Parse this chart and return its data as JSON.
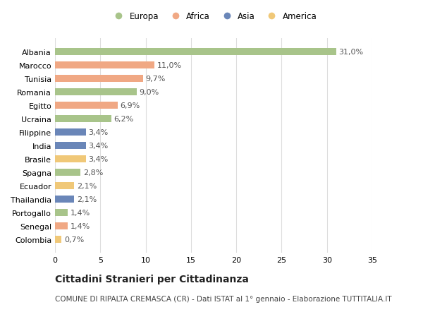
{
  "countries": [
    "Albania",
    "Marocco",
    "Tunisia",
    "Romania",
    "Egitto",
    "Ucraina",
    "Filippine",
    "India",
    "Brasile",
    "Spagna",
    "Ecuador",
    "Thailandia",
    "Portogallo",
    "Senegal",
    "Colombia"
  ],
  "values": [
    31.0,
    11.0,
    9.7,
    9.0,
    6.9,
    6.2,
    3.4,
    3.4,
    3.4,
    2.8,
    2.1,
    2.1,
    1.4,
    1.4,
    0.7
  ],
  "continents": [
    "Europa",
    "Africa",
    "Africa",
    "Europa",
    "Africa",
    "Europa",
    "Asia",
    "Asia",
    "America",
    "Europa",
    "America",
    "Asia",
    "Europa",
    "Africa",
    "America"
  ],
  "continent_colors": {
    "Europa": "#a8c48a",
    "Africa": "#f0a884",
    "Asia": "#6a86b8",
    "America": "#f0c878"
  },
  "legend_order": [
    "Europa",
    "Africa",
    "Asia",
    "America"
  ],
  "title": "Cittadini Stranieri per Cittadinanza",
  "subtitle": "COMUNE DI RIPALTA CREMASCA (CR) - Dati ISTAT al 1° gennaio - Elaborazione TUTTITALIA.IT",
  "xlim": [
    0,
    35
  ],
  "xticks": [
    0,
    5,
    10,
    15,
    20,
    25,
    30,
    35
  ],
  "bar_height": 0.55,
  "background_color": "#ffffff",
  "grid_color": "#dddddd",
  "bar_label_fontsize": 8,
  "ytick_fontsize": 8,
  "xtick_fontsize": 8,
  "title_fontsize": 10,
  "subtitle_fontsize": 7.5,
  "legend_fontsize": 8.5
}
